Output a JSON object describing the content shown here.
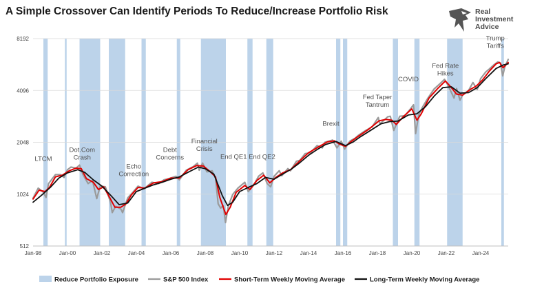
{
  "title": "A Simple Crossover Can Identify Periods To Reduce/Increase Portfolio Risk",
  "brand": {
    "line1": "Real",
    "line2": "Investment",
    "line3": "Advice"
  },
  "colors": {
    "shade": "#bcd3ea",
    "sp500": "#9a9a9a",
    "short_ma": "#e10000",
    "long_ma": "#111111",
    "grid": "#d9d9d9"
  },
  "chart_data": {
    "type": "line",
    "title": "A Simple Crossover Can Identify Periods To Reduce/Increase Portfolio Risk",
    "y_scale": "log2",
    "ylim": [
      512,
      8192
    ],
    "y_ticks": [
      {
        "value": 512,
        "label": "512"
      },
      {
        "value": 1024,
        "label": "1024"
      },
      {
        "value": 2048,
        "label": "2048"
      },
      {
        "value": 4096,
        "label": "4096"
      },
      {
        "value": 8192,
        "label": "8192"
      }
    ],
    "xlim": [
      1998.0,
      2025.6
    ],
    "x_ticks": [
      {
        "value": 1998,
        "label": "Jan-98"
      },
      {
        "value": 2000,
        "label": "Jan-00"
      },
      {
        "value": 2002,
        "label": "Jan-02"
      },
      {
        "value": 2004,
        "label": "Jan-04"
      },
      {
        "value": 2006,
        "label": "Jan-06"
      },
      {
        "value": 2008,
        "label": "Jan-08"
      },
      {
        "value": 2010,
        "label": "Jan-10"
      },
      {
        "value": 2012,
        "label": "Jan-12"
      },
      {
        "value": 2014,
        "label": "Jan-14"
      },
      {
        "value": 2016,
        "label": "Jan-16"
      },
      {
        "value": 2018,
        "label": "Jan-18"
      },
      {
        "value": 2020,
        "label": "Jan-20"
      },
      {
        "value": 2022,
        "label": "Jan-22"
      },
      {
        "value": 2024,
        "label": "Jan-24"
      }
    ],
    "shaded_periods": [
      [
        1998.6,
        1998.85
      ],
      [
        1999.85,
        1999.95
      ],
      [
        2000.7,
        2001.9
      ],
      [
        2002.4,
        2003.35
      ],
      [
        2004.3,
        2004.55
      ],
      [
        2006.35,
        2006.55
      ],
      [
        2007.75,
        2009.2
      ],
      [
        2010.45,
        2010.75
      ],
      [
        2011.55,
        2011.95
      ],
      [
        2015.6,
        2015.85
      ],
      [
        2016.0,
        2016.25
      ],
      [
        2018.9,
        2019.2
      ],
      [
        2020.15,
        2020.45
      ],
      [
        2022.05,
        2022.95
      ],
      [
        2025.2,
        2025.35
      ]
    ],
    "series": [
      {
        "name": "S&P 500 Index",
        "points": [
          [
            1998.0,
            970
          ],
          [
            1998.3,
            1110
          ],
          [
            1998.6,
            1050
          ],
          [
            1998.75,
            980
          ],
          [
            1998.9,
            1180
          ],
          [
            1999.3,
            1330
          ],
          [
            1999.6,
            1330
          ],
          [
            1999.8,
            1280
          ],
          [
            2000.0,
            1420
          ],
          [
            2000.2,
            1470
          ],
          [
            2000.5,
            1450
          ],
          [
            2000.7,
            1510
          ],
          [
            2000.9,
            1330
          ],
          [
            2001.2,
            1180
          ],
          [
            2001.45,
            1230
          ],
          [
            2001.7,
            965
          ],
          [
            2001.9,
            1140
          ],
          [
            2002.2,
            1130
          ],
          [
            2002.5,
            920
          ],
          [
            2002.6,
            800
          ],
          [
            2002.8,
            870
          ],
          [
            2003.1,
            840
          ],
          [
            2003.2,
            800
          ],
          [
            2003.5,
            975
          ],
          [
            2003.8,
            1050
          ],
          [
            2004.1,
            1140
          ],
          [
            2004.45,
            1100
          ],
          [
            2004.9,
            1200
          ],
          [
            2005.3,
            1180
          ],
          [
            2005.6,
            1240
          ],
          [
            2005.9,
            1260
          ],
          [
            2006.3,
            1300
          ],
          [
            2006.5,
            1240
          ],
          [
            2006.9,
            1410
          ],
          [
            2007.3,
            1480
          ],
          [
            2007.55,
            1550
          ],
          [
            2007.65,
            1410
          ],
          [
            2007.85,
            1550
          ],
          [
            2008.1,
            1380
          ],
          [
            2008.4,
            1400
          ],
          [
            2008.6,
            1270
          ],
          [
            2008.75,
            900
          ],
          [
            2008.9,
            850
          ],
          [
            2009.05,
            880
          ],
          [
            2009.18,
            700
          ],
          [
            2009.35,
            880
          ],
          [
            2009.6,
            1020
          ],
          [
            2009.9,
            1110
          ],
          [
            2010.3,
            1200
          ],
          [
            2010.5,
            1060
          ],
          [
            2010.8,
            1150
          ],
          [
            2011.1,
            1300
          ],
          [
            2011.35,
            1360
          ],
          [
            2011.6,
            1180
          ],
          [
            2011.8,
            1130
          ],
          [
            2012.0,
            1300
          ],
          [
            2012.3,
            1400
          ],
          [
            2012.45,
            1310
          ],
          [
            2012.8,
            1440
          ],
          [
            2012.95,
            1400
          ],
          [
            2013.3,
            1590
          ],
          [
            2013.5,
            1610
          ],
          [
            2013.8,
            1760
          ],
          [
            2014.1,
            1780
          ],
          [
            2014.5,
            1960
          ],
          [
            2014.8,
            1900
          ],
          [
            2014.95,
            2050
          ],
          [
            2015.4,
            2110
          ],
          [
            2015.65,
            1900
          ],
          [
            2015.9,
            2080
          ],
          [
            2016.1,
            1870
          ],
          [
            2016.4,
            2080
          ],
          [
            2016.7,
            2160
          ],
          [
            2016.9,
            2250
          ],
          [
            2017.3,
            2390
          ],
          [
            2017.7,
            2520
          ],
          [
            2018.05,
            2850
          ],
          [
            2018.15,
            2620
          ],
          [
            2018.6,
            2880
          ],
          [
            2018.75,
            2900
          ],
          [
            2018.95,
            2400
          ],
          [
            2019.3,
            2900
          ],
          [
            2019.6,
            2920
          ],
          [
            2019.95,
            3230
          ],
          [
            2020.1,
            3380
          ],
          [
            2020.22,
            2300
          ],
          [
            2020.4,
            2950
          ],
          [
            2020.6,
            3250
          ],
          [
            2020.9,
            3650
          ],
          [
            2021.3,
            4180
          ],
          [
            2021.6,
            4450
          ],
          [
            2021.9,
            4750
          ],
          [
            2022.1,
            4400
          ],
          [
            2022.45,
            3700
          ],
          [
            2022.6,
            4200
          ],
          [
            2022.8,
            3600
          ],
          [
            2022.95,
            3850
          ],
          [
            2023.3,
            4100
          ],
          [
            2023.55,
            4550
          ],
          [
            2023.8,
            4150
          ],
          [
            2024.0,
            4800
          ],
          [
            2024.3,
            5250
          ],
          [
            2024.5,
            5450
          ],
          [
            2024.75,
            5750
          ],
          [
            2025.0,
            6000
          ],
          [
            2025.15,
            5900
          ],
          [
            2025.28,
            4980
          ],
          [
            2025.4,
            5600
          ],
          [
            2025.6,
            6200
          ]
        ]
      },
      {
        "name": "Short-Term Weekly Moving Average",
        "points": [
          [
            1998.0,
            960
          ],
          [
            1998.35,
            1080
          ],
          [
            1998.7,
            1060
          ],
          [
            1998.95,
            1120
          ],
          [
            1999.3,
            1290
          ],
          [
            1999.7,
            1320
          ],
          [
            2000.1,
            1400
          ],
          [
            2000.5,
            1450
          ],
          [
            2000.8,
            1440
          ],
          [
            2001.1,
            1260
          ],
          [
            2001.5,
            1200
          ],
          [
            2001.8,
            1090
          ],
          [
            2002.1,
            1130
          ],
          [
            2002.5,
            960
          ],
          [
            2002.75,
            860
          ],
          [
            2003.1,
            860
          ],
          [
            2003.4,
            900
          ],
          [
            2003.7,
            1010
          ],
          [
            2004.1,
            1120
          ],
          [
            2004.5,
            1110
          ],
          [
            2005.0,
            1190
          ],
          [
            2005.5,
            1210
          ],
          [
            2006.0,
            1270
          ],
          [
            2006.5,
            1270
          ],
          [
            2007.0,
            1420
          ],
          [
            2007.5,
            1500
          ],
          [
            2007.9,
            1490
          ],
          [
            2008.3,
            1380
          ],
          [
            2008.6,
            1290
          ],
          [
            2008.85,
            980
          ],
          [
            2009.2,
            780
          ],
          [
            2009.45,
            860
          ],
          [
            2009.8,
            1050
          ],
          [
            2010.3,
            1150
          ],
          [
            2010.6,
            1090
          ],
          [
            2011.0,
            1230
          ],
          [
            2011.4,
            1320
          ],
          [
            2011.75,
            1190
          ],
          [
            2012.1,
            1280
          ],
          [
            2012.5,
            1360
          ],
          [
            2012.95,
            1420
          ],
          [
            2013.5,
            1600
          ],
          [
            2014.0,
            1780
          ],
          [
            2014.6,
            1930
          ],
          [
            2015.1,
            2060
          ],
          [
            2015.5,
            2090
          ],
          [
            2015.8,
            2000
          ],
          [
            2016.15,
            1940
          ],
          [
            2016.5,
            2080
          ],
          [
            2016.9,
            2220
          ],
          [
            2017.5,
            2440
          ],
          [
            2018.1,
            2730
          ],
          [
            2018.5,
            2780
          ],
          [
            2018.85,
            2750
          ],
          [
            2019.1,
            2600
          ],
          [
            2019.5,
            2880
          ],
          [
            2020.0,
            3200
          ],
          [
            2020.3,
            2750
          ],
          [
            2020.55,
            3000
          ],
          [
            2021.0,
            3700
          ],
          [
            2021.5,
            4200
          ],
          [
            2021.95,
            4650
          ],
          [
            2022.3,
            4250
          ],
          [
            2022.6,
            3900
          ],
          [
            2022.95,
            3850
          ],
          [
            2023.4,
            4150
          ],
          [
            2023.75,
            4350
          ],
          [
            2024.1,
            4700
          ],
          [
            2024.5,
            5300
          ],
          [
            2024.9,
            5850
          ],
          [
            2025.1,
            5950
          ],
          [
            2025.3,
            5550
          ],
          [
            2025.6,
            5950
          ]
        ]
      },
      {
        "name": "Long-Term Weekly Moving Average",
        "points": [
          [
            1998.0,
            920
          ],
          [
            1998.5,
            1010
          ],
          [
            1999.0,
            1120
          ],
          [
            1999.5,
            1270
          ],
          [
            2000.0,
            1360
          ],
          [
            2000.6,
            1420
          ],
          [
            2001.0,
            1370
          ],
          [
            2001.5,
            1240
          ],
          [
            2002.0,
            1140
          ],
          [
            2002.5,
            1010
          ],
          [
            2003.0,
            890
          ],
          [
            2003.5,
            910
          ],
          [
            2004.0,
            1060
          ],
          [
            2004.5,
            1110
          ],
          [
            2005.0,
            1160
          ],
          [
            2005.5,
            1200
          ],
          [
            2006.0,
            1250
          ],
          [
            2006.5,
            1290
          ],
          [
            2007.0,
            1370
          ],
          [
            2007.6,
            1470
          ],
          [
            2008.0,
            1440
          ],
          [
            2008.5,
            1340
          ],
          [
            2009.0,
            1000
          ],
          [
            2009.3,
            880
          ],
          [
            2009.6,
            920
          ],
          [
            2010.0,
            1060
          ],
          [
            2010.5,
            1120
          ],
          [
            2011.0,
            1180
          ],
          [
            2011.5,
            1280
          ],
          [
            2012.0,
            1250
          ],
          [
            2012.5,
            1340
          ],
          [
            2013.0,
            1430
          ],
          [
            2013.5,
            1560
          ],
          [
            2014.0,
            1720
          ],
          [
            2014.5,
            1860
          ],
          [
            2015.0,
            1990
          ],
          [
            2015.6,
            2070
          ],
          [
            2016.15,
            1960
          ],
          [
            2016.6,
            2060
          ],
          [
            2017.0,
            2200
          ],
          [
            2017.6,
            2400
          ],
          [
            2018.2,
            2620
          ],
          [
            2018.7,
            2700
          ],
          [
            2019.2,
            2720
          ],
          [
            2019.8,
            2950
          ],
          [
            2020.3,
            3000
          ],
          [
            2020.8,
            3300
          ],
          [
            2021.3,
            3800
          ],
          [
            2021.8,
            4250
          ],
          [
            2022.3,
            4300
          ],
          [
            2022.8,
            3950
          ],
          [
            2023.3,
            3980
          ],
          [
            2023.8,
            4250
          ],
          [
            2024.3,
            4800
          ],
          [
            2024.9,
            5500
          ],
          [
            2025.3,
            5750
          ],
          [
            2025.6,
            5850
          ]
        ]
      }
    ],
    "annotations": [
      {
        "text": [
          "LTCM"
        ],
        "x": 1998.6,
        "y": 1600
      },
      {
        "text": [
          "Dot.Com",
          "Crash"
        ],
        "x": 2000.85,
        "y": 1800
      },
      {
        "text": [
          "Echo",
          "Correction"
        ],
        "x": 2003.85,
        "y": 1440
      },
      {
        "text": [
          "Debt",
          "Concerns"
        ],
        "x": 2005.95,
        "y": 1800
      },
      {
        "text": [
          "Financial",
          "Crisis"
        ],
        "x": 2007.95,
        "y": 2020
      },
      {
        "text": [
          "End QE1"
        ],
        "x": 2009.65,
        "y": 1640
      },
      {
        "text": [
          "End QE2"
        ],
        "x": 2011.3,
        "y": 1640
      },
      {
        "text": [
          "Brexit"
        ],
        "x": 2015.3,
        "y": 2550
      },
      {
        "text": [
          "Fed Taper",
          "Tantrum"
        ],
        "x": 2018.0,
        "y": 3650
      },
      {
        "text": [
          "COVID"
        ],
        "x": 2019.8,
        "y": 4630
      },
      {
        "text": [
          "Fed Rate",
          "Hikes"
        ],
        "x": 2021.95,
        "y": 5550
      },
      {
        "text": [
          "Trump",
          "Tariffs"
        ],
        "x": 2024.85,
        "y": 8000
      }
    ],
    "legend": {
      "position": "bottom",
      "items": [
        {
          "label": "Reduce Portfolio Exposure",
          "kind": "patch",
          "color": "#bcd3ea"
        },
        {
          "label": "S&P 500 Index",
          "kind": "line",
          "color": "#9a9a9a"
        },
        {
          "label": "Short-Term Weekly Moving Average",
          "kind": "line",
          "color": "#e10000"
        },
        {
          "label": "Long-Term Weekly Moving Average",
          "kind": "line",
          "color": "#111111"
        }
      ]
    }
  }
}
